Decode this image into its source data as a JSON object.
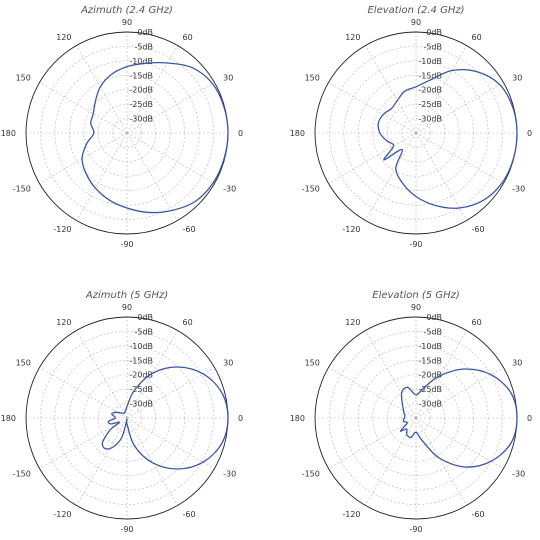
{
  "colors": {
    "pattern": "#3b55a6",
    "grid": "#b5b5b5",
    "outline": "#222222"
  },
  "chart_data": [
    {
      "type": "polar-line",
      "title": "Azimuth (2.4 GHz)",
      "angle_ticks": [
        "0",
        "30",
        "60",
        "90",
        "120",
        "150",
        "180",
        "-150",
        "-120",
        "-90",
        "-60",
        "-30"
      ],
      "angle_tick_values": [
        0,
        30,
        60,
        90,
        120,
        150,
        180,
        -150,
        -120,
        -90,
        -60,
        -30
      ],
      "radial_ticks": [
        "0dB",
        "-5dB",
        "-10dB",
        "-15dB",
        "-20dB",
        "-25dB",
        "-30dB"
      ],
      "radial_tick_values": [
        0,
        -5,
        -10,
        -15,
        -20,
        -25,
        -30
      ],
      "rlim": [
        -35,
        0
      ],
      "series": [
        {
          "angles": [
            -180,
            -165,
            -150,
            -135,
            -120,
            -105,
            -90,
            -75,
            -60,
            -45,
            -30,
            -15,
            0,
            15,
            30,
            45,
            60,
            75,
            90,
            105,
            120,
            135,
            150,
            165,
            180
          ],
          "values": [
            -23.5,
            -20.5,
            -17.0,
            -15.0,
            -13.0,
            -11.0,
            -9.0,
            -6.5,
            -4.0,
            -1.5,
            -0.5,
            -0.2,
            0,
            -0.2,
            -0.8,
            -3.0,
            -7.0,
            -10.0,
            -12.0,
            -14.0,
            -16.5,
            -19.5,
            -21.5,
            -22.0,
            -23.5
          ]
        }
      ]
    },
    {
      "type": "polar-line",
      "title": "Elevation (2.4 GHz)",
      "angle_ticks": [
        "0",
        "30",
        "60",
        "90",
        "120",
        "150",
        "180",
        "-150",
        "-120",
        "-90",
        "-60",
        "-30"
      ],
      "angle_tick_values": [
        0,
        30,
        60,
        90,
        120,
        150,
        180,
        -150,
        -120,
        -90,
        -60,
        -30
      ],
      "radial_ticks": [
        "0dB",
        "-5dB",
        "-10dB",
        "-15dB",
        "-20dB",
        "-25dB",
        "-30dB"
      ],
      "radial_tick_values": [
        0,
        -5,
        -10,
        -15,
        -20,
        -25,
        -30
      ],
      "rlim": [
        -35,
        0
      ],
      "series": [
        {
          "angles": [
            -180,
            -165,
            -150,
            -140,
            -130,
            -120,
            -105,
            -90,
            -75,
            -60,
            -45,
            -30,
            -15,
            0,
            15,
            30,
            45,
            60,
            75,
            90,
            105,
            120,
            135,
            150,
            165,
            180
          ],
          "values": [
            -22.5,
            -24.5,
            -26.0,
            -20.5,
            -27.5,
            -21.0,
            -17.0,
            -13.0,
            -9.0,
            -5.0,
            -2.0,
            -0.5,
            -0.1,
            0,
            -0.3,
            -1.5,
            -5.0,
            -10.0,
            -16.0,
            -19.0,
            -20.0,
            -22.0,
            -23.0,
            -22.0,
            -21.5,
            -22.5
          ]
        }
      ]
    },
    {
      "type": "polar-line",
      "title": "Azimuth (5 GHz)",
      "angle_ticks": [
        "0",
        "30",
        "60",
        "90",
        "120",
        "150",
        "180",
        "-150",
        "-120",
        "-90",
        "-60",
        "-30"
      ],
      "angle_tick_values": [
        0,
        30,
        60,
        90,
        120,
        150,
        180,
        -150,
        -120,
        -90,
        -60,
        -30
      ],
      "radial_ticks": [
        "0dB",
        "-5dB",
        "-10dB",
        "-15dB",
        "-20dB",
        "-25dB",
        "-30dB"
      ],
      "radial_tick_values": [
        0,
        -5,
        -10,
        -15,
        -20,
        -25,
        -30
      ],
      "rlim": [
        -35,
        0
      ],
      "series": [
        {
          "angles": [
            -180,
            -170,
            -160,
            -150,
            -145,
            -135,
            -125,
            -115,
            -105,
            -95,
            -90,
            -75,
            -60,
            -45,
            -30,
            -15,
            0,
            15,
            30,
            45,
            60,
            75,
            90,
            120,
            150,
            165,
            180
          ],
          "values": [
            -31.0,
            -28.5,
            -29.0,
            -32.0,
            -28.0,
            -23.0,
            -22.0,
            -24.0,
            -28.0,
            -34.0,
            -33.0,
            -25.0,
            -17.0,
            -10.0,
            -4.5,
            -1.0,
            0,
            -1.0,
            -4.5,
            -10.0,
            -17.0,
            -25.0,
            -31.0,
            -33.0,
            -31.0,
            -29.5,
            -31.0
          ]
        }
      ]
    },
    {
      "type": "polar-line",
      "title": "Elevation (5 GHz)",
      "angle_ticks": [
        "0",
        "30",
        "60",
        "90",
        "120",
        "150",
        "180",
        "-150",
        "-120",
        "-90",
        "-60",
        "-30"
      ],
      "angle_tick_values": [
        0,
        30,
        60,
        90,
        120,
        150,
        180,
        -150,
        -120,
        -90,
        -60,
        -30
      ],
      "radial_ticks": [
        "0dB",
        "-5dB",
        "-10dB",
        "-15dB",
        "-20dB",
        "-25dB",
        "-30dB"
      ],
      "radial_tick_values": [
        0,
        -5,
        -10,
        -15,
        -20,
        -25,
        -30
      ],
      "rlim": [
        -35,
        0
      ],
      "series": [
        {
          "angles": [
            -180,
            -165,
            -150,
            -140,
            -130,
            -120,
            -105,
            -90,
            -75,
            -60,
            -45,
            -30,
            -15,
            0,
            15,
            30,
            45,
            60,
            75,
            90,
            105,
            120,
            150,
            165,
            180
          ],
          "values": [
            -31.0,
            -30.5,
            -31.5,
            -28.0,
            -30.0,
            -28.5,
            -28.0,
            -30.0,
            -27.0,
            -19.0,
            -11.0,
            -5.0,
            -1.0,
            0,
            -1.0,
            -5.0,
            -11.0,
            -18.0,
            -24.0,
            -27.0,
            -24.0,
            -25.0,
            -30.0,
            -31.0,
            -31.0
          ]
        }
      ]
    }
  ]
}
